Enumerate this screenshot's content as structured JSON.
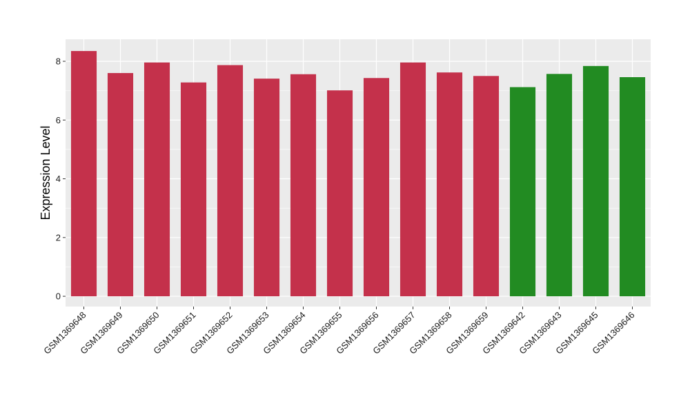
{
  "chart_data": {
    "type": "bar",
    "title": "",
    "xlabel": "",
    "ylabel": "Expression Level",
    "ylim": [
      -0.35,
      8.75
    ],
    "yticks": [
      0,
      2,
      4,
      6,
      8
    ],
    "grid": true,
    "legend": "none",
    "categories": [
      "GSM1369648",
      "GSM1369649",
      "GSM1369650",
      "GSM1369651",
      "GSM1369652",
      "GSM1369653",
      "GSM1369654",
      "GSM1369655",
      "GSM1369656",
      "GSM1369657",
      "GSM1369658",
      "GSM1369659",
      "GSM1369642",
      "GSM1369643",
      "GSM1369645",
      "GSM1369646"
    ],
    "values": [
      8.35,
      7.6,
      7.96,
      7.28,
      7.87,
      7.41,
      7.56,
      7.01,
      7.43,
      7.96,
      7.62,
      7.5,
      7.12,
      7.57,
      7.84,
      7.46
    ],
    "bar_colors": [
      "#c4314b",
      "#c4314b",
      "#c4314b",
      "#c4314b",
      "#c4314b",
      "#c4314b",
      "#c4314b",
      "#c4314b",
      "#c4314b",
      "#c4314b",
      "#c4314b",
      "#c4314b",
      "#228b22",
      "#228b22",
      "#228b22",
      "#228b22"
    ],
    "panel_background": "#ebebeb",
    "gridline_color": "#ffffff"
  }
}
